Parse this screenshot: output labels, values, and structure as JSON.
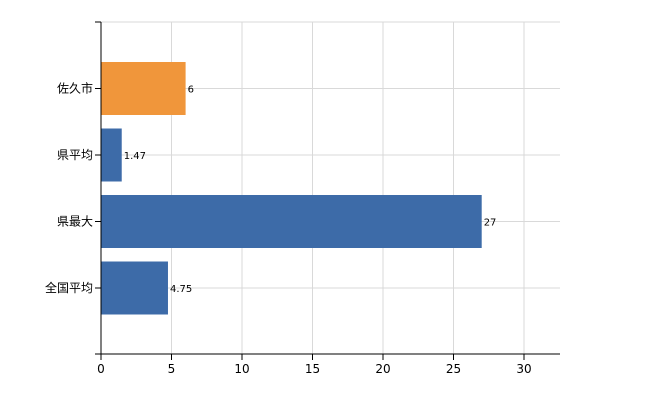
{
  "chart_data": {
    "type": "bar",
    "orientation": "horizontal",
    "categories": [
      "佐久市",
      "県平均",
      "県最大",
      "全国平均"
    ],
    "values": [
      6,
      1.47,
      27,
      4.75
    ],
    "value_labels": [
      "6",
      "1.47",
      "27",
      "4.75"
    ],
    "bar_colors": [
      "#f0963b",
      "#3d6ba8",
      "#3d6ba8",
      "#3d6ba8"
    ],
    "xlim": [
      0,
      32.5
    ],
    "x_ticks": [
      0,
      5,
      10,
      15,
      20,
      25,
      30
    ],
    "grid": true,
    "legend": "none"
  },
  "colors": {
    "highlight": "#f0963b",
    "bar": "#3d6ba8",
    "grid": "#d9d9d9",
    "axis": "#000000"
  }
}
